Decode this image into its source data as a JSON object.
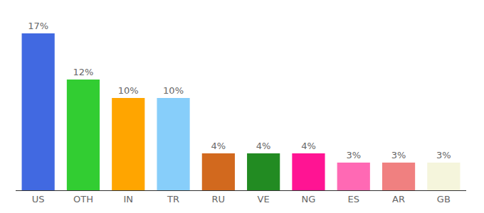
{
  "chart_data": {
    "type": "bar",
    "categories": [
      "US",
      "OTH",
      "IN",
      "TR",
      "RU",
      "VE",
      "NG",
      "ES",
      "AR",
      "GB"
    ],
    "values": [
      17,
      12,
      10,
      10,
      4,
      4,
      4,
      3,
      3,
      3
    ],
    "value_labels": [
      "17%",
      "12%",
      "10%",
      "10%",
      "4%",
      "4%",
      "4%",
      "3%",
      "3%",
      "3%"
    ],
    "colors": [
      "#4169e1",
      "#32cd32",
      "#ffa500",
      "#87cefa",
      "#d2691e",
      "#228b22",
      "#ff1493",
      "#ff69b4",
      "#f08080",
      "#f5f5dc"
    ],
    "ylim": [
      0,
      17
    ],
    "data_labels": true,
    "tick_labels": "x"
  }
}
